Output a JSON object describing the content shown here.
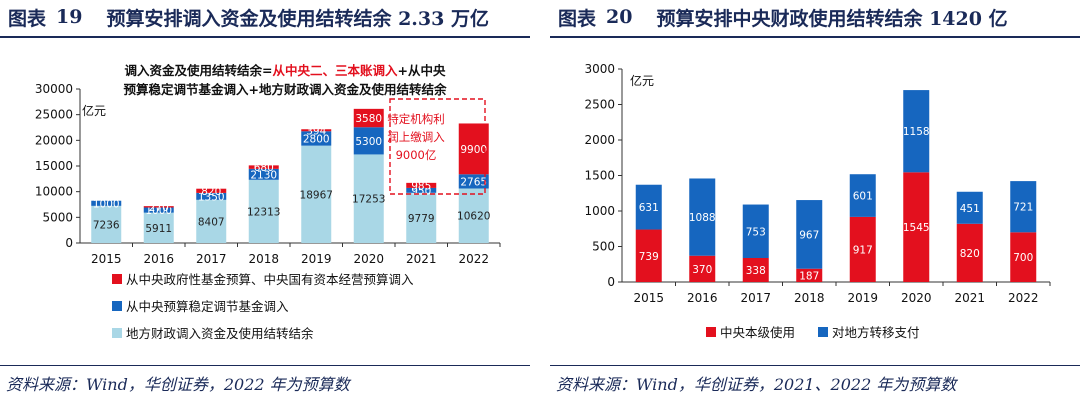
{
  "colors": {
    "red": "#e3101e",
    "blue": "#1666bf",
    "lightblue": "#a9d7e6",
    "navy": "#1a2a58"
  },
  "left": {
    "fig_label": "图表",
    "fig_num": "19",
    "title": "预算安排调入资金及使用结转结余 2.33 万亿",
    "source": "资料来源：Wind，华创证券，2022 年为预算数"
  },
  "right": {
    "fig_label": "图表",
    "fig_num": "20",
    "title": "预算安排中央财政使用结转结余 1420 亿",
    "source": "资料来源：Wind，华创证券，2021、2022 年为预算数"
  },
  "chart_data": [
    {
      "type": "bar",
      "stacked": true,
      "unit": "亿元",
      "categories": [
        "2015",
        "2016",
        "2017",
        "2018",
        "2019",
        "2020",
        "2021",
        "2022"
      ],
      "series": [
        {
          "name": "地方财政调入资金及使用结转结余",
          "color_key": "lightblue",
          "values": [
            7236,
            5911,
            8407,
            12313,
            18967,
            17253,
            9779,
            10620
          ]
        },
        {
          "name": "从中央预算稳定调节基金调入",
          "color_key": "blue",
          "values": [
            1000,
            1000,
            1350,
            2130,
            2800,
            5300,
            950,
            2765
          ]
        },
        {
          "name": "从中央政府性基金预算、中央国有资本经营预算调入",
          "color_key": "red",
          "values": [
            0,
            270,
            820,
            680,
            394,
            3580,
            985,
            9900
          ]
        }
      ],
      "segment_labels": [
        [
          "7236",
          "1000",
          ""
        ],
        [
          "5911",
          "1000",
          "270"
        ],
        [
          "8407",
          "1350",
          "820"
        ],
        [
          "12313",
          "2130",
          "680"
        ],
        [
          "18967",
          "2800",
          "394"
        ],
        [
          "17253",
          "5300",
          "3580"
        ],
        [
          "9779",
          "950",
          "985"
        ],
        [
          "10620",
          "2765",
          "9900"
        ]
      ],
      "ylim": [
        0,
        30000
      ],
      "yticks": [
        "0",
        "5000",
        "10000",
        "15000",
        "20000",
        "25000",
        "30000"
      ],
      "legend": "bottom",
      "annotation_formula": {
        "part1": "调入资金及使用结转结余=",
        "part2": "从中央二、三本账调入",
        "part3": "+从中央预算稳定调节基金调入+地方财政调入资金及使用结转结余"
      },
      "annotation_box": [
        "特定机构利",
        "润上缴调入",
        "9000亿"
      ]
    },
    {
      "type": "bar",
      "stacked": true,
      "unit": "亿元",
      "categories": [
        "2015",
        "2016",
        "2017",
        "2018",
        "2019",
        "2020",
        "2021",
        "2022"
      ],
      "series": [
        {
          "name": "中央本级使用",
          "color_key": "red",
          "values": [
            739,
            370,
            338,
            187,
            917,
            1545,
            820,
            700
          ]
        },
        {
          "name": "对地方转移支付",
          "color_key": "blue",
          "values": [
            631,
            1088,
            753,
            967,
            601,
            1158,
            451,
            721
          ]
        }
      ],
      "ylim": [
        0,
        3000
      ],
      "yticks": [
        "0",
        "500",
        "1000",
        "1500",
        "2000",
        "2500",
        "3000"
      ],
      "legend": "bottom"
    }
  ]
}
